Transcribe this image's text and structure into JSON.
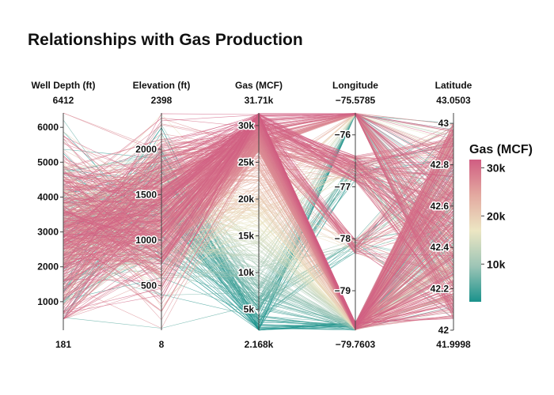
{
  "chart_data": {
    "type": "parallel_coordinates",
    "title": "Relationships with Gas Production",
    "colorscale": [
      "#1a928c",
      "#9dc5b6",
      "#ece6c3",
      "#e3a9a0",
      "#d05d82"
    ],
    "colorbar": {
      "title": "Gas (MCF)",
      "range": [
        2168,
        31710
      ],
      "ticks": [
        {
          "value": 10000,
          "label": "10k"
        },
        {
          "value": 20000,
          "label": "20k"
        },
        {
          "value": 30000,
          "label": "30k"
        }
      ]
    },
    "dimensions": [
      {
        "label": "Well Depth (ft)",
        "range": [
          181,
          6412
        ],
        "range_labels": {
          "max": "6412",
          "min": "181"
        },
        "ticks": [
          {
            "value": 1000,
            "label": "1000"
          },
          {
            "value": 2000,
            "label": "2000"
          },
          {
            "value": 3000,
            "label": "3000"
          },
          {
            "value": 4000,
            "label": "4000"
          },
          {
            "value": 5000,
            "label": "5000"
          },
          {
            "value": 6000,
            "label": "6000"
          }
        ]
      },
      {
        "label": "Elevation (ft)",
        "range": [
          8,
          2398
        ],
        "range_labels": {
          "max": "2398",
          "min": "8"
        },
        "ticks": [
          {
            "value": 500,
            "label": "500"
          },
          {
            "value": 1000,
            "label": "1000"
          },
          {
            "value": 1500,
            "label": "1500"
          },
          {
            "value": 2000,
            "label": "2000"
          }
        ]
      },
      {
        "label": "Gas (MCF)",
        "range": [
          2168,
          31710
        ],
        "range_labels": {
          "max": "31.71k",
          "min": "2.168k"
        },
        "ticks": [
          {
            "value": 5000,
            "label": "5k"
          },
          {
            "value": 10000,
            "label": "10k"
          },
          {
            "value": 15000,
            "label": "15k"
          },
          {
            "value": 20000,
            "label": "20k"
          },
          {
            "value": 25000,
            "label": "25k"
          },
          {
            "value": 30000,
            "label": "30k"
          }
        ]
      },
      {
        "label": "Longitude",
        "range": [
          -79.7603,
          -75.5785
        ],
        "range_labels": {
          "max": "−75.5785",
          "min": "−79.7603"
        },
        "ticks": [
          {
            "value": -79,
            "label": "−79"
          },
          {
            "value": -78,
            "label": "−78"
          },
          {
            "value": -77,
            "label": "−77"
          },
          {
            "value": -76,
            "label": "−76"
          }
        ]
      },
      {
        "label": "Latitude",
        "range": [
          41.9998,
          43.0503
        ],
        "range_labels": {
          "max": "43.0503",
          "min": "41.9998"
        },
        "ticks": [
          {
            "value": 42,
            "label": "42"
          },
          {
            "value": 42.2,
            "label": "42.2"
          },
          {
            "value": 42.4,
            "label": "42.4"
          },
          {
            "value": 42.6,
            "label": "42.6"
          },
          {
            "value": 42.8,
            "label": "42.8"
          },
          {
            "value": 43,
            "label": "43"
          }
        ]
      }
    ]
  }
}
